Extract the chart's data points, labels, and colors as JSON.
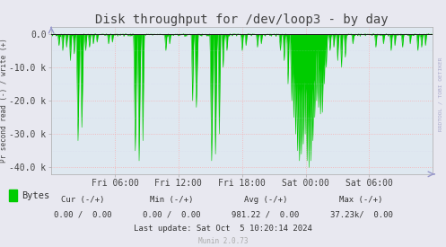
{
  "title": "Disk throughput for /dev/loop3 - by day",
  "ylabel": "Pr second read (-) / write (+)",
  "background_color": "#e8e8f0",
  "plot_bg_color": "#dfe8f0",
  "grid_color": "#ff9999",
  "grid_color2": "#ccccee",
  "line_color": "#00cc00",
  "border_color": "#aaaaaa",
  "ylim": [
    -42000,
    2000
  ],
  "yticks": [
    0,
    -10000,
    -20000,
    -30000,
    -40000
  ],
  "ytick_labels": [
    "0.0",
    "-10.0 k",
    "-20.0 k",
    "-30.0 k",
    "-40.0 k"
  ],
  "xtick_labels": [
    "Fri 06:00",
    "Fri 12:00",
    "Fri 18:00",
    "Sat 00:00",
    "Sat 06:00"
  ],
  "legend_label": "Bytes",
  "legend_color": "#00cc00",
  "cur_text": "Cur (-/+)",
  "min_text": "Min (-/+)",
  "avg_text": "Avg (-/+)",
  "max_text": "Max (-/+)",
  "cur_val": "0.00 /  0.00",
  "min_val": "0.00 /  0.00",
  "avg_val": "981.22 /  0.00",
  "max_val": "37.23k/  0.00",
  "last_update": "Last update: Sat Oct  5 10:20:14 2024",
  "munin_version": "Munin 2.0.73",
  "rrdtool_text": "RRDTOOL / TOBI OETIKER",
  "title_fontsize": 10,
  "axis_fontsize": 7,
  "stats_fontsize": 6.5,
  "legend_fontsize": 7.5,
  "n_points": 800
}
